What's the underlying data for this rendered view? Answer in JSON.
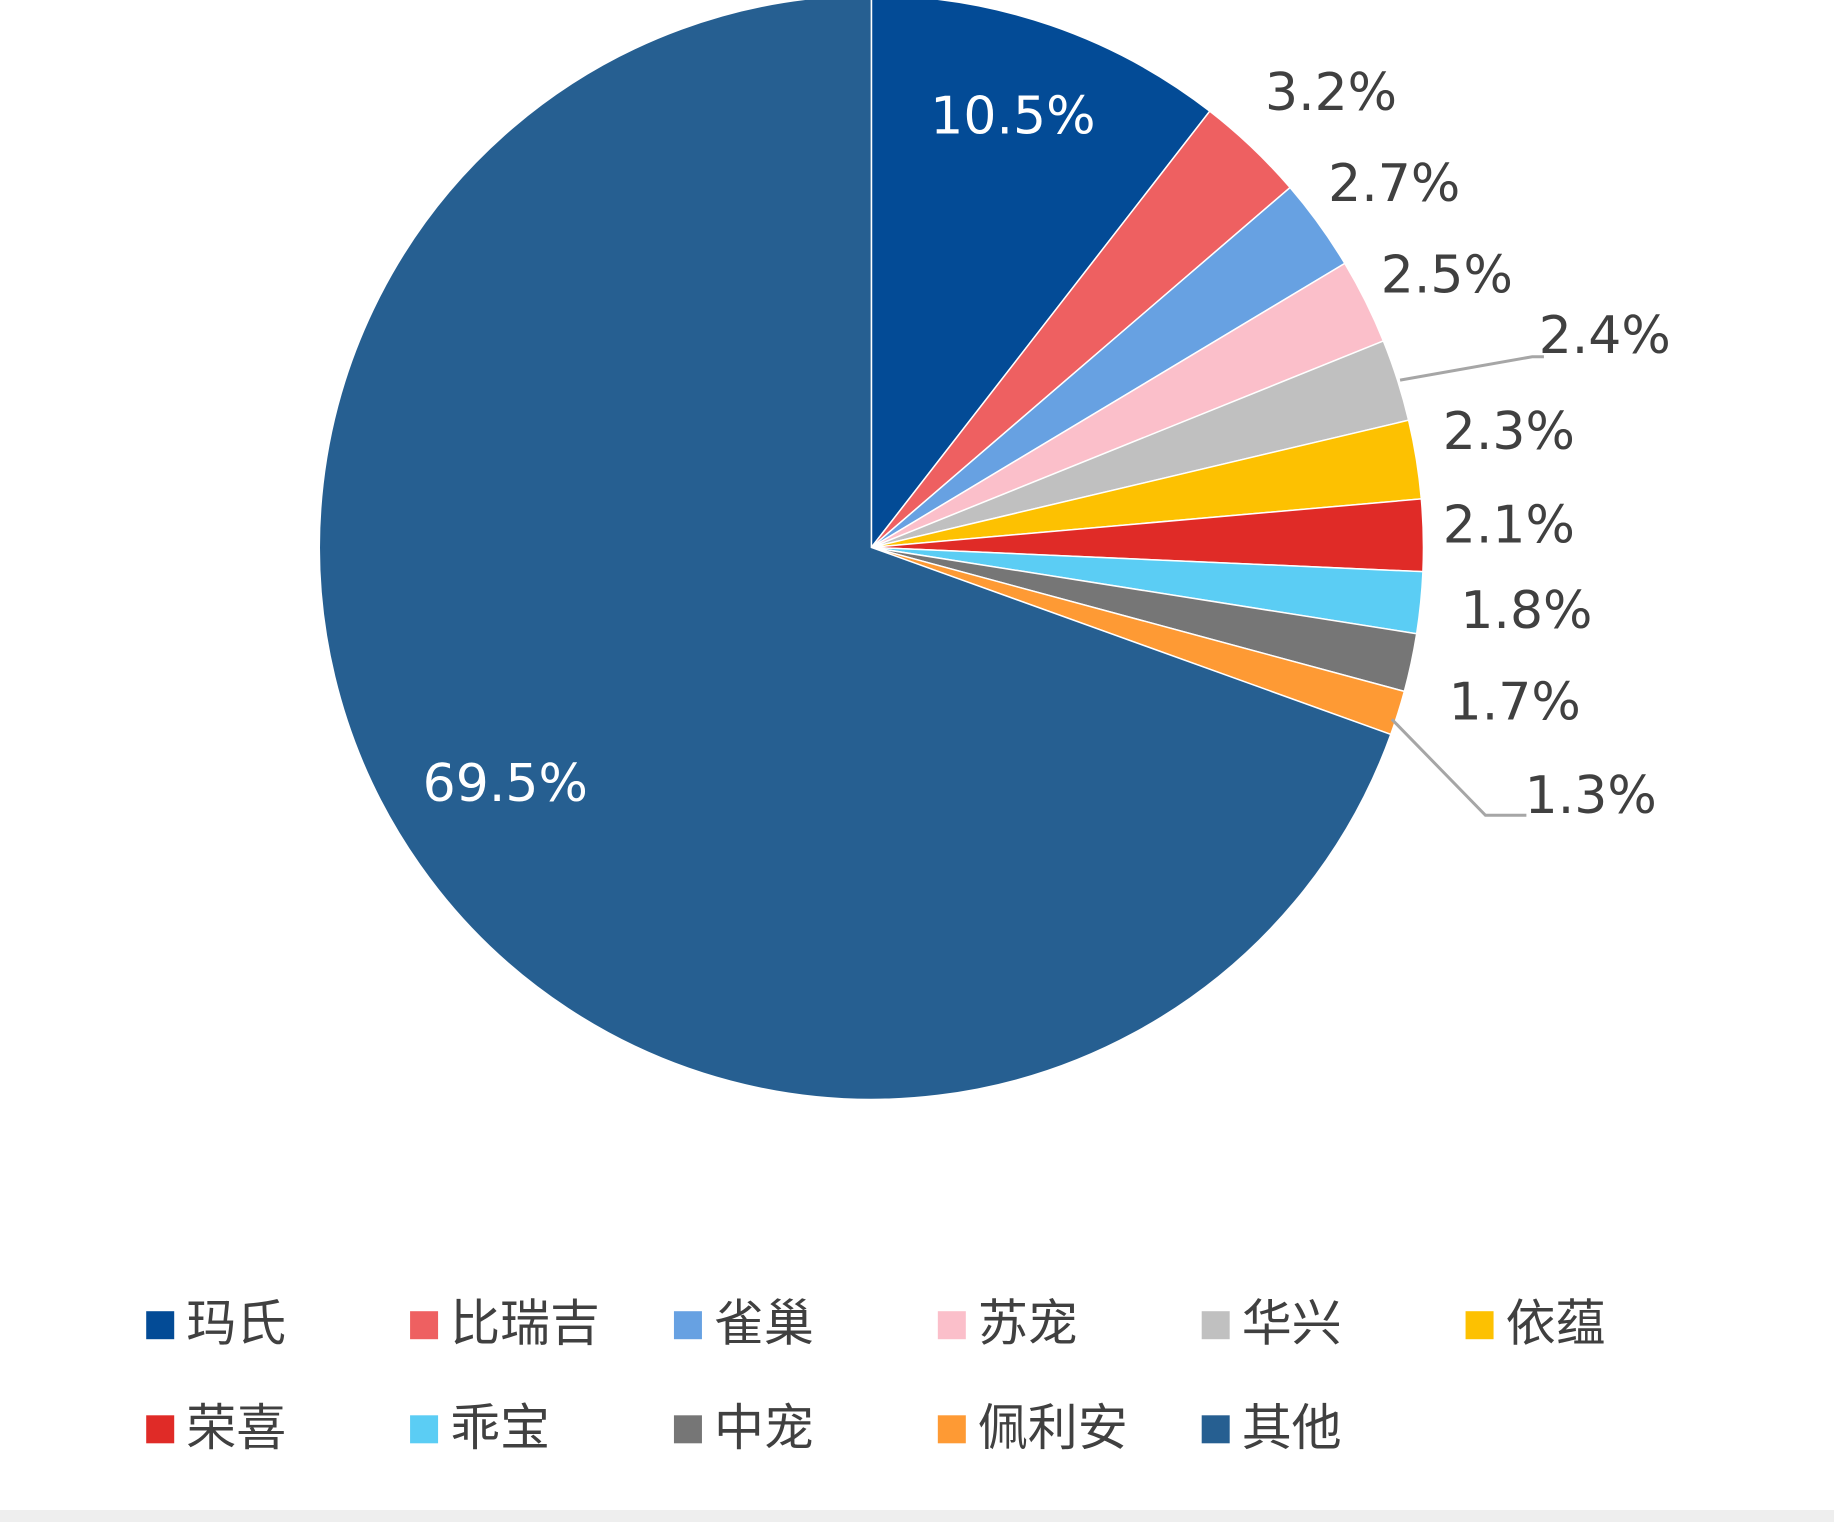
{
  "chart_data": {
    "type": "pie",
    "categories": [
      "玛氏",
      "比瑞吉",
      "雀巢",
      "苏宠",
      "华兴",
      "依蕴",
      "荣喜",
      "乖宝",
      "中宠",
      "佩利安",
      "其他"
    ],
    "values": [
      10.5,
      3.2,
      2.7,
      2.5,
      2.4,
      2.3,
      2.1,
      1.8,
      1.7,
      1.3,
      69.5
    ],
    "value_labels": [
      "10.5%",
      "3.2%",
      "2.7%",
      "2.5%",
      "2.4%",
      "2.3%",
      "2.1%",
      "1.8%",
      "1.7%",
      "1.3%",
      "69.5%"
    ],
    "colors": [
      "#034b96",
      "#ee6061",
      "#67a1e2",
      "#fbbfca",
      "#c0c0c0",
      "#fdc101",
      "#e02b27",
      "#5bcdf4",
      "#767676",
      "#fe9a34",
      "#265f91"
    ],
    "legend": "bottom"
  }
}
